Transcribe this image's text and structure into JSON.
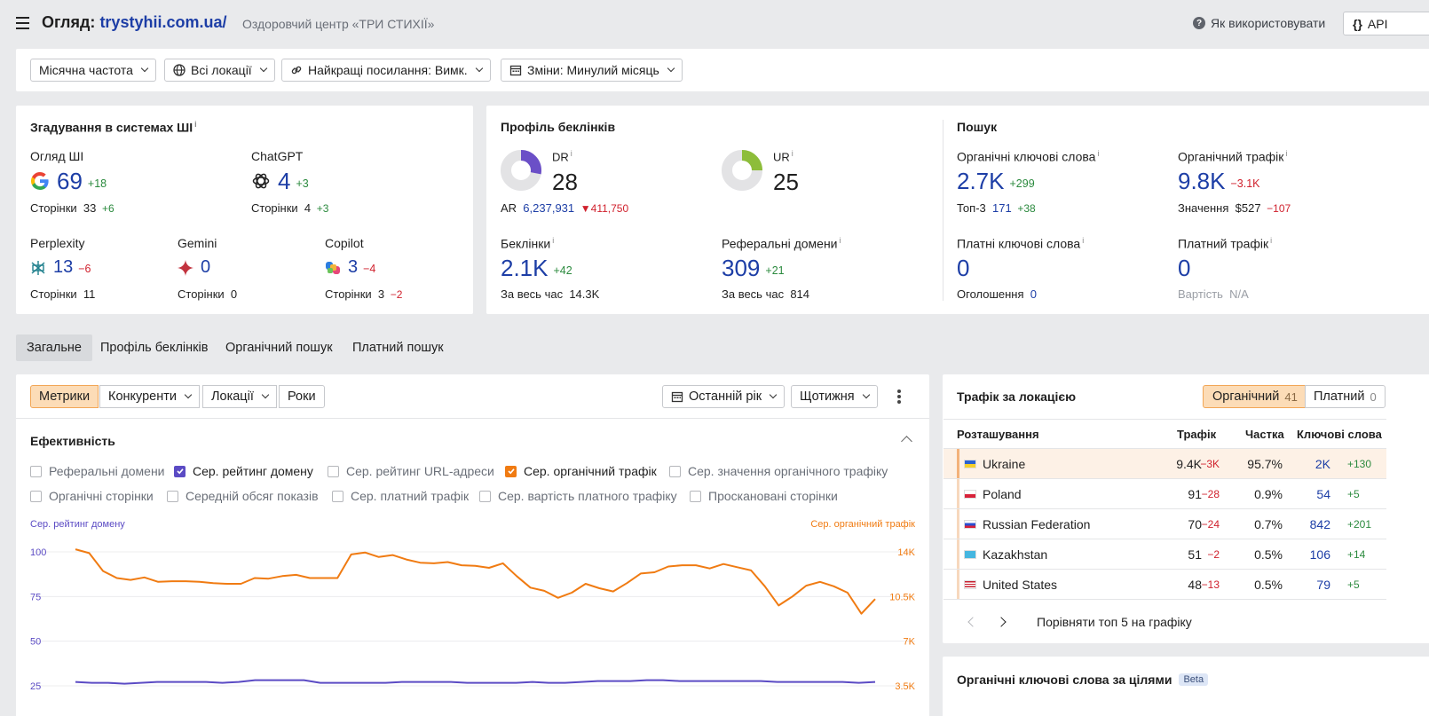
{
  "header": {
    "title_prefix": "Огляд:",
    "domain": "trystyhii.com.ua/",
    "subtitle": "Оздоровчий центр «ТРИ СТИХІЇ»",
    "help_label": "Як використовувати",
    "api_label": "API"
  },
  "filters": {
    "frequency": "Місячна частота",
    "locations": "Всі локації",
    "best_links": "Найкращі посилання: Вимк.",
    "changes": "Зміни: Минулий місяць"
  },
  "ai": {
    "title": "Згадування в системах ШІ",
    "overview": {
      "label": "Огляд ШІ",
      "value": "69",
      "delta": "+18",
      "pages_label": "Сторінки",
      "pages": "33",
      "pages_delta": "+6"
    },
    "chatgpt": {
      "label": "ChatGPT",
      "value": "4",
      "delta": "+3",
      "pages_label": "Сторінки",
      "pages": "4",
      "pages_delta": "+3"
    },
    "perplexity": {
      "label": "Perplexity",
      "value": "13",
      "delta": "−6",
      "pages_label": "Сторінки",
      "pages": "11"
    },
    "gemini": {
      "label": "Gemini",
      "value": "0",
      "pages_label": "Сторінки",
      "pages": "0"
    },
    "copilot": {
      "label": "Copilot",
      "value": "3",
      "delta": "−4",
      "pages_label": "Сторінки",
      "pages": "3",
      "pages_delta": "−2"
    }
  },
  "backlinks": {
    "title": "Профіль беклінків",
    "dr": {
      "label": "DR",
      "value": "28",
      "ring_fraction": 0.28
    },
    "ur": {
      "label": "UR",
      "value": "25",
      "ring_fraction": 0.25
    },
    "ar_label": "AR",
    "ar_value": "6,237,931",
    "ar_delta": "411,750",
    "backlinks": {
      "label": "Беклінки",
      "value": "2.1K",
      "delta": "+42",
      "all_time_label": "За весь час",
      "all_time": "14.3K"
    },
    "ref_domains": {
      "label": "Реферальні домени",
      "value": "309",
      "delta": "+21",
      "all_time_label": "За весь час",
      "all_time": "814"
    }
  },
  "search": {
    "title": "Пошук",
    "organic_kw": {
      "label": "Органічні ключові слова",
      "value": "2.7K",
      "delta": "+299",
      "sub_label": "Топ-3",
      "sub_value": "171",
      "sub_delta": "+38"
    },
    "organic_traffic": {
      "label": "Органічний трафік",
      "value": "9.8K",
      "delta": "−3.1K",
      "sub_label": "Значення",
      "sub_value": "$527",
      "sub_delta": "−107"
    },
    "paid_kw": {
      "label": "Платні ключові слова",
      "value": "0",
      "sub_label": "Оголошення",
      "sub_value": "0"
    },
    "paid_traffic": {
      "label": "Платний трафік",
      "value": "0",
      "sub_label": "Вартість",
      "sub_value": "N/A"
    }
  },
  "tabs": [
    "Загальне",
    "Профіль беклінків",
    "Органічний пошук",
    "Платний пошук"
  ],
  "chart_toolbar": {
    "segments": [
      "Метрики",
      "Конкуренти",
      "Локації",
      "Роки"
    ],
    "period": "Останній рік",
    "granularity": "Щотижня"
  },
  "efficiency": {
    "title": "Ефективність",
    "checkboxes_row1": [
      {
        "label": "Реферальні домени",
        "checked": false
      },
      {
        "label": "Сер. рейтинг домену",
        "checked": true,
        "color": "#5b4bc4"
      },
      {
        "label": "Сер. рейтинг URL-адреси",
        "checked": false
      },
      {
        "label": "Сер. органічний трафік",
        "checked": true,
        "color": "#f07b12"
      },
      {
        "label": "Сер. значення органічного трафіку",
        "checked": false
      }
    ],
    "checkboxes_row2": [
      {
        "label": "Органічні сторінки",
        "checked": false
      },
      {
        "label": "Середній обсяг показів",
        "checked": false
      },
      {
        "label": "Сер. платний трафік",
        "checked": false
      },
      {
        "label": "Сер. вартість платного трафіку",
        "checked": false
      },
      {
        "label": "Проскановані сторінки",
        "checked": false
      }
    ]
  },
  "chart_data": {
    "type": "line",
    "left_axis_label": "Сер. рейтинг домену",
    "right_axis_label": "Сер. органічний трафік",
    "left_ticks": [
      "100",
      "75",
      "50",
      "25"
    ],
    "right_ticks": [
      "14K",
      "10.5K",
      "7K",
      "3.5K"
    ],
    "left_ylim": [
      25,
      100
    ],
    "right_ylim": [
      3500,
      14000
    ],
    "series": [
      {
        "name": "Сер. рейтинг домену",
        "color": "#5b4bc4",
        "axis": "left",
        "values": [
          27.2,
          26.7,
          26.7,
          26.2,
          26.7,
          27.2,
          27.2,
          27.2,
          27.2,
          26.7,
          27.2,
          28.2,
          28.2,
          28.2,
          28.2,
          26.7,
          26.7,
          26.7,
          26.7,
          26.7,
          27.2,
          27.2,
          27.2,
          27.2,
          26.7,
          26.7,
          26.7,
          26.7,
          27.2,
          26.7,
          26.7,
          27.2,
          27.7,
          27.7,
          27.7,
          28.2,
          28.2,
          27.7,
          27.7,
          27.7,
          27.7,
          27.7,
          27.7,
          27.2,
          27.2,
          27.2,
          27.2,
          27.2,
          26.7,
          27.2
        ]
      },
      {
        "name": "Сер. органічний трафік",
        "color": "#f07b12",
        "axis": "right",
        "values": [
          14200,
          13900,
          12500,
          11950,
          11800,
          12000,
          11650,
          11700,
          11700,
          11650,
          11550,
          11500,
          11500,
          11950,
          11900,
          12100,
          12200,
          11950,
          11950,
          11950,
          13800,
          13950,
          13600,
          13750,
          13400,
          13150,
          13100,
          13200,
          12950,
          12900,
          12750,
          13100,
          12100,
          11200,
          10950,
          10400,
          10800,
          11500,
          11150,
          10900,
          11550,
          12300,
          12400,
          12850,
          12950,
          12950,
          12700,
          13050,
          12800,
          12550,
          11300,
          9800,
          10500,
          11350,
          11650,
          11300,
          10800,
          9150,
          10300
        ]
      }
    ]
  },
  "traffic_by_location": {
    "title": "Трафік за локацією",
    "toggle_organic": "Органічний",
    "toggle_organic_count": "41",
    "toggle_paid": "Платний",
    "toggle_paid_count": "0",
    "columns": [
      "Розташування",
      "Трафік",
      "Частка",
      "Ключові слова"
    ],
    "rows": [
      {
        "country": "Ukraine",
        "traffic": "9.4K",
        "traffic_delta": "−3K",
        "share": "95.7%",
        "keywords": "2K",
        "kw_delta": "+130"
      },
      {
        "country": "Poland",
        "traffic": "91",
        "traffic_delta": "−28",
        "share": "0.9%",
        "keywords": "54",
        "kw_delta": "+5"
      },
      {
        "country": "Russian Federation",
        "traffic": "70",
        "traffic_delta": "−24",
        "share": "0.7%",
        "keywords": "842",
        "kw_delta": "+201"
      },
      {
        "country": "Kazakhstan",
        "traffic": "51",
        "traffic_delta": "−2",
        "share": "0.5%",
        "keywords": "106",
        "kw_delta": "+14"
      },
      {
        "country": "United States",
        "traffic": "48",
        "traffic_delta": "−13",
        "share": "0.5%",
        "keywords": "79",
        "kw_delta": "+5"
      }
    ],
    "compare_label": "Порівняти топ 5 на графіку"
  },
  "intent": {
    "title": "Органічні ключові слова за цілями",
    "badge": "Beta"
  }
}
